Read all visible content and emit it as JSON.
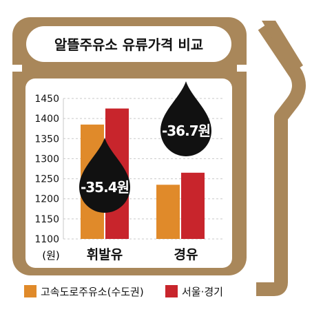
{
  "colors": {
    "frame": "#A9875A",
    "panel": "#FFFFFF",
    "grid": "#C9C9C9",
    "series_highway": "#E08A2A",
    "series_seoul": "#C8252C",
    "drop": "#111111",
    "drop_text": "#FFFFFF",
    "text": "#111111"
  },
  "chart_data": {
    "type": "bar",
    "title": "알뜰주유소 유류가격 비교",
    "unit_label": "(원)",
    "categories": [
      "휘발유",
      "경유"
    ],
    "series": [
      {
        "name": "고속도로주유소(수도권)",
        "values": [
          1385,
          1235
        ]
      },
      {
        "name": "서울·경기",
        "values": [
          1425,
          1265
        ]
      }
    ],
    "ylim": [
      1100,
      1450
    ],
    "yticks": [
      1100,
      1150,
      1200,
      1250,
      1300,
      1350,
      1400,
      1450
    ],
    "grid": true,
    "legend_position": "bottom",
    "annotations": [
      {
        "category": "휘발유",
        "text": "-35.4원"
      },
      {
        "category": "경유",
        "text": "-36.7원"
      }
    ]
  }
}
